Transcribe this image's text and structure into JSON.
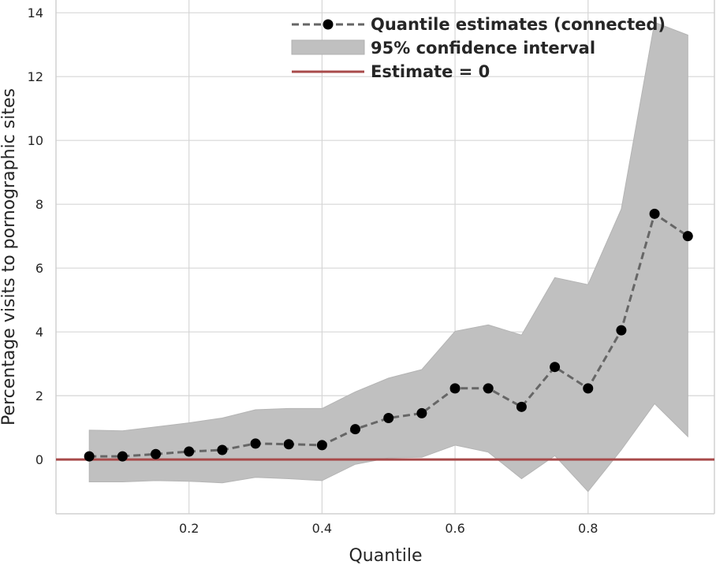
{
  "chart_data": {
    "type": "line",
    "title": "",
    "xlabel": "Quantile",
    "ylabel": "Percentage visits to pornographic sites",
    "xlim": [
      0.0,
      0.99
    ],
    "ylim": [
      -1.7,
      14.4
    ],
    "xticks": [
      0.2,
      0.4,
      0.6,
      0.8
    ],
    "xtick_labels": [
      "0.2",
      "0.4",
      "0.6",
      "0.8"
    ],
    "yticks": [
      0,
      2,
      4,
      6,
      8,
      10,
      12,
      14
    ],
    "ytick_labels": [
      "0",
      "2",
      "4",
      "6",
      "8",
      "10",
      "12",
      "14"
    ],
    "grid": true,
    "legend_position": "top-right",
    "x": [
      0.05,
      0.1,
      0.15,
      0.2,
      0.25,
      0.3,
      0.35,
      0.4,
      0.45,
      0.5,
      0.55,
      0.6,
      0.65,
      0.7,
      0.75,
      0.8,
      0.85,
      0.9,
      0.95
    ],
    "series": [
      {
        "name": "Quantile estimates (connected)",
        "type": "line",
        "style": "dashed-with-markers",
        "color": "#666666",
        "marker_color": "#000000",
        "values": [
          0.1,
          0.1,
          0.17,
          0.25,
          0.3,
          0.5,
          0.48,
          0.45,
          0.95,
          1.3,
          1.45,
          2.23,
          2.23,
          1.65,
          2.9,
          2.23,
          4.05,
          7.7,
          7.0
        ]
      },
      {
        "name": "95% confidence interval",
        "type": "band",
        "color": "#c0c0c0",
        "lower": [
          -0.7,
          -0.7,
          -0.66,
          -0.68,
          -0.73,
          -0.56,
          -0.6,
          -0.66,
          -0.15,
          0.05,
          0.07,
          0.45,
          0.23,
          -0.6,
          0.12,
          -1.0,
          0.3,
          1.75,
          0.72
        ],
        "upper": [
          0.92,
          0.9,
          1.02,
          1.15,
          1.3,
          1.56,
          1.6,
          1.6,
          2.12,
          2.55,
          2.82,
          4.02,
          4.22,
          3.9,
          5.7,
          5.48,
          7.85,
          13.7,
          13.3
        ]
      },
      {
        "name": "Estimate = 0",
        "type": "hline",
        "color": "#a84a4a",
        "value": 0
      }
    ]
  }
}
